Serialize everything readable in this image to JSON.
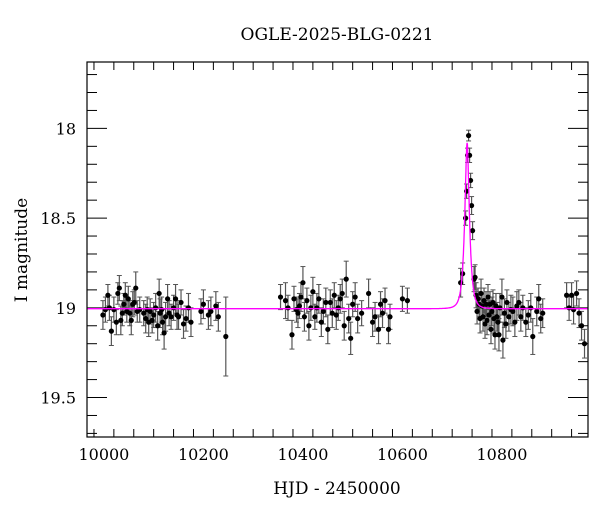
{
  "chart_data": {
    "type": "scatter",
    "title": "OGLE-2025-BLG-0221",
    "xlabel": "HJD - 2450000",
    "ylabel": "I magnitude",
    "xlim": [
      9966,
      10973
    ],
    "ylim": [
      19.72,
      17.63
    ],
    "y_inverted": true,
    "x_ticks": [
      10000,
      10200,
      10400,
      10600,
      10800
    ],
    "x_tick_labels": [
      "10000",
      "10200",
      "10400",
      "10600",
      "10800"
    ],
    "y_ticks": [
      18,
      18.5,
      19,
      19.5
    ],
    "y_tick_labels": [
      "18",
      "18.5",
      "19",
      "19.5"
    ],
    "grid": false,
    "model": {
      "name": "microlensing fit",
      "color": "#ff00ff",
      "t0": 10730,
      "u0": 0.46,
      "tE": 8.2,
      "baseline": 19.005
    },
    "points_color": "#000000",
    "points": [
      [
        9998,
        19.04,
        0.08
      ],
      [
        10003,
        19.01,
        0.07
      ],
      [
        10008,
        18.93,
        0.06
      ],
      [
        10011,
        19.0,
        0.07
      ],
      [
        10015,
        19.13,
        0.08
      ],
      [
        10020,
        19.01,
        0.07
      ],
      [
        10025,
        19.08,
        0.07
      ],
      [
        10028,
        18.92,
        0.06
      ],
      [
        10031,
        18.89,
        0.07
      ],
      [
        10034,
        19.07,
        0.08
      ],
      [
        10037,
        19.03,
        0.07
      ],
      [
        10040,
        18.98,
        0.06
      ],
      [
        10043,
        18.93,
        0.07
      ],
      [
        10046,
        19.02,
        0.06
      ],
      [
        10049,
        18.95,
        0.07
      ],
      [
        10052,
        19.03,
        0.07
      ],
      [
        10055,
        19.07,
        0.08
      ],
      [
        10058,
        18.98,
        0.07
      ],
      [
        10061,
        18.97,
        0.07
      ],
      [
        10064,
        18.89,
        0.09
      ],
      [
        10067,
        19.02,
        0.06
      ],
      [
        10072,
        19.01,
        0.07
      ],
      [
        10080,
        19.03,
        0.07
      ],
      [
        10084,
        19.06,
        0.08
      ],
      [
        10087,
        19.01,
        0.07
      ],
      [
        10090,
        19.08,
        0.08
      ],
      [
        10093,
        19.02,
        0.07
      ],
      [
        10097,
        19.07,
        0.07
      ],
      [
        10100,
        19.04,
        0.07
      ],
      [
        10104,
        19.0,
        0.08
      ],
      [
        10108,
        19.1,
        0.08
      ],
      [
        10111,
        18.92,
        0.08
      ],
      [
        10113,
        19.03,
        0.08
      ],
      [
        10116,
        19.01,
        0.07
      ],
      [
        10118,
        19.08,
        0.07
      ],
      [
        10121,
        19.14,
        0.09
      ],
      [
        10124,
        19.05,
        0.08
      ],
      [
        10128,
        18.95,
        0.08
      ],
      [
        10131,
        19.03,
        0.07
      ],
      [
        10135,
        19.05,
        0.07
      ],
      [
        10140,
        19.0,
        0.07
      ],
      [
        10144,
        18.95,
        0.08
      ],
      [
        10147,
        19.04,
        0.08
      ],
      [
        10150,
        19.05,
        0.07
      ],
      [
        10155,
        18.97,
        0.07
      ],
      [
        10160,
        19.09,
        0.08
      ],
      [
        10165,
        19.06,
        0.07
      ],
      [
        10170,
        19.0,
        0.08
      ],
      [
        10175,
        19.08,
        0.08
      ],
      [
        10195,
        19.02,
        0.07
      ],
      [
        10200,
        18.98,
        0.08
      ],
      [
        10210,
        19.04,
        0.08
      ],
      [
        10215,
        19.02,
        0.08
      ],
      [
        10225,
        18.99,
        0.08
      ],
      [
        10230,
        19.05,
        0.08
      ],
      [
        10245,
        19.16,
        0.22
      ],
      [
        10355,
        18.94,
        0.07
      ],
      [
        10365,
        18.96,
        0.1
      ],
      [
        10370,
        19.0,
        0.07
      ],
      [
        10378,
        19.15,
        0.08
      ],
      [
        10382,
        18.95,
        0.07
      ],
      [
        10387,
        19.01,
        0.07
      ],
      [
        10390,
        19.03,
        0.08
      ],
      [
        10393,
        18.99,
        0.07
      ],
      [
        10396,
        18.94,
        0.08
      ],
      [
        10400,
        18.86,
        0.09
      ],
      [
        10403,
        19.05,
        0.08
      ],
      [
        10408,
        18.96,
        0.07
      ],
      [
        10412,
        19.1,
        0.08
      ],
      [
        10416,
        19.0,
        0.07
      ],
      [
        10420,
        18.91,
        0.08
      ],
      [
        10424,
        19.05,
        0.07
      ],
      [
        10428,
        19.0,
        0.08
      ],
      [
        10432,
        18.95,
        0.08
      ],
      [
        10437,
        19.08,
        0.08
      ],
      [
        10441,
        19.02,
        0.07
      ],
      [
        10446,
        18.97,
        0.08
      ],
      [
        10450,
        19.12,
        0.08
      ],
      [
        10455,
        18.97,
        0.07
      ],
      [
        10459,
        19.03,
        0.08
      ],
      [
        10463,
        18.93,
        0.07
      ],
      [
        10467,
        19.04,
        0.08
      ],
      [
        10471,
        19.0,
        0.07
      ],
      [
        10475,
        18.95,
        0.08
      ],
      [
        10479,
        18.92,
        0.08
      ],
      [
        10483,
        19.1,
        0.08
      ],
      [
        10487,
        18.84,
        0.1
      ],
      [
        10492,
        19.06,
        0.08
      ],
      [
        10496,
        19.17,
        0.09
      ],
      [
        10500,
        18.98,
        0.07
      ],
      [
        10505,
        18.94,
        0.08
      ],
      [
        10510,
        19.06,
        0.08
      ],
      [
        10518,
        19.03,
        0.07
      ],
      [
        10532,
        18.92,
        0.08
      ],
      [
        10540,
        19.08,
        0.08
      ],
      [
        10545,
        19.05,
        0.08
      ],
      [
        10552,
        19.12,
        0.08
      ],
      [
        10556,
        18.98,
        0.07
      ],
      [
        10560,
        19.03,
        0.08
      ],
      [
        10565,
        18.96,
        0.07
      ],
      [
        10572,
        19.12,
        0.08
      ],
      [
        10575,
        19.05,
        0.07
      ],
      [
        10600,
        18.95,
        0.07
      ],
      [
        10610,
        18.96,
        0.07
      ],
      [
        10717,
        18.86,
        0.08
      ],
      [
        10721,
        18.81,
        0.06
      ],
      [
        10727,
        18.5,
        0.04
      ],
      [
        10729,
        18.35,
        0.04
      ],
      [
        10731,
        18.15,
        0.04
      ],
      [
        10733,
        18.04,
        0.03
      ],
      [
        10735,
        18.15,
        0.04
      ],
      [
        10737,
        18.29,
        0.04
      ],
      [
        10739,
        18.43,
        0.05
      ],
      [
        10741,
        18.57,
        0.05
      ],
      [
        10744,
        18.84,
        0.07
      ],
      [
        10746,
        18.83,
        0.07
      ],
      [
        10748,
        18.93,
        0.07
      ],
      [
        10750,
        19.02,
        0.07
      ],
      [
        10752,
        18.95,
        0.06
      ],
      [
        10754,
        18.98,
        0.07
      ],
      [
        10756,
        19.06,
        0.08
      ],
      [
        10758,
        18.92,
        0.08
      ],
      [
        10760,
        18.99,
        0.07
      ],
      [
        10762,
        19.05,
        0.08
      ],
      [
        10764,
        18.96,
        0.07
      ],
      [
        10766,
        19.09,
        0.08
      ],
      [
        10768,
        18.98,
        0.07
      ],
      [
        10770,
        19.07,
        0.08
      ],
      [
        10772,
        18.94,
        0.07
      ],
      [
        10774,
        19.04,
        0.08
      ],
      [
        10776,
        18.98,
        0.07
      ],
      [
        10778,
        19.12,
        0.08
      ],
      [
        10780,
        19.02,
        0.08
      ],
      [
        10782,
        18.97,
        0.07
      ],
      [
        10784,
        19.06,
        0.08
      ],
      [
        10786,
        19.15,
        0.08
      ],
      [
        10788,
        18.99,
        0.07
      ],
      [
        10790,
        19.05,
        0.08
      ],
      [
        10792,
        19.08,
        0.08
      ],
      [
        10794,
        19.15,
        0.09
      ],
      [
        10796,
        19.0,
        0.08
      ],
      [
        10800,
        18.94,
        0.1
      ],
      [
        10802,
        19.18,
        0.1
      ],
      [
        10805,
        19.03,
        0.08
      ],
      [
        10808,
        19.09,
        0.08
      ],
      [
        10810,
        18.97,
        0.07
      ],
      [
        10814,
        19.05,
        0.08
      ],
      [
        10818,
        19.01,
        0.08
      ],
      [
        10822,
        19.02,
        0.08
      ],
      [
        10826,
        19.08,
        0.08
      ],
      [
        10830,
        18.99,
        0.08
      ],
      [
        10834,
        18.97,
        0.07
      ],
      [
        10838,
        19.05,
        0.08
      ],
      [
        10842,
        19.0,
        0.07
      ],
      [
        10848,
        19.08,
        0.08
      ],
      [
        10853,
        19.04,
        0.08
      ],
      [
        10858,
        19.0,
        0.08
      ],
      [
        10862,
        19.16,
        0.1
      ],
      [
        10870,
        19.02,
        0.08
      ],
      [
        10874,
        18.95,
        0.08
      ],
      [
        10878,
        19.06,
        0.08
      ],
      [
        10882,
        19.03,
        0.08
      ],
      [
        10930,
        18.93,
        0.07
      ],
      [
        10935,
        19.0,
        0.07
      ],
      [
        10940,
        18.93,
        0.07
      ],
      [
        10944,
        19.01,
        0.08
      ],
      [
        10950,
        18.92,
        0.07
      ],
      [
        10955,
        19.03,
        0.08
      ],
      [
        10960,
        19.1,
        0.08
      ],
      [
        10966,
        19.2,
        0.08
      ]
    ]
  }
}
